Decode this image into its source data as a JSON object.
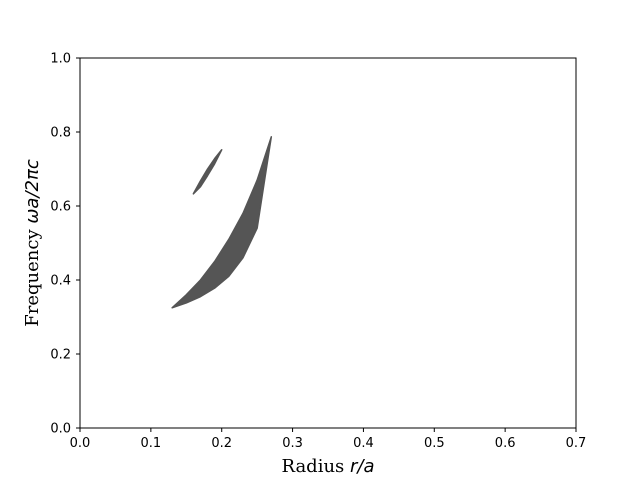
{
  "chart_data": {
    "type": "area",
    "title": "",
    "xlabel": {
      "prefix": "Radius ",
      "math": "r/a"
    },
    "ylabel": {
      "prefix": "Frequency ",
      "math": "ωa/2πc"
    },
    "xlim": [
      0.0,
      0.7
    ],
    "ylim": [
      0.0,
      1.0
    ],
    "xticks": [
      "0.0",
      "0.1",
      "0.2",
      "0.3",
      "0.4",
      "0.5",
      "0.6",
      "0.7"
    ],
    "yticks": [
      "0.0",
      "0.2",
      "0.4",
      "0.6",
      "0.8",
      "1.0"
    ],
    "grid": false,
    "legend": "none",
    "fill_color": "#555555",
    "regions": [
      {
        "upper": [
          [
            0.13,
            0.325
          ],
          [
            0.15,
            0.36
          ],
          [
            0.17,
            0.4
          ],
          [
            0.19,
            0.45
          ],
          [
            0.21,
            0.51
          ],
          [
            0.23,
            0.58
          ],
          [
            0.25,
            0.67
          ],
          [
            0.27,
            0.787
          ]
        ],
        "lower": [
          [
            0.13,
            0.325
          ],
          [
            0.15,
            0.338
          ],
          [
            0.17,
            0.355
          ],
          [
            0.19,
            0.378
          ],
          [
            0.21,
            0.41
          ],
          [
            0.23,
            0.46
          ],
          [
            0.25,
            0.54
          ],
          [
            0.27,
            0.787
          ]
        ]
      },
      {
        "upper": [
          [
            0.16,
            0.633
          ],
          [
            0.17,
            0.668
          ],
          [
            0.18,
            0.7
          ],
          [
            0.19,
            0.728
          ],
          [
            0.2,
            0.752
          ]
        ],
        "lower": [
          [
            0.16,
            0.633
          ],
          [
            0.17,
            0.652
          ],
          [
            0.18,
            0.682
          ],
          [
            0.19,
            0.714
          ],
          [
            0.2,
            0.752
          ]
        ]
      }
    ]
  }
}
